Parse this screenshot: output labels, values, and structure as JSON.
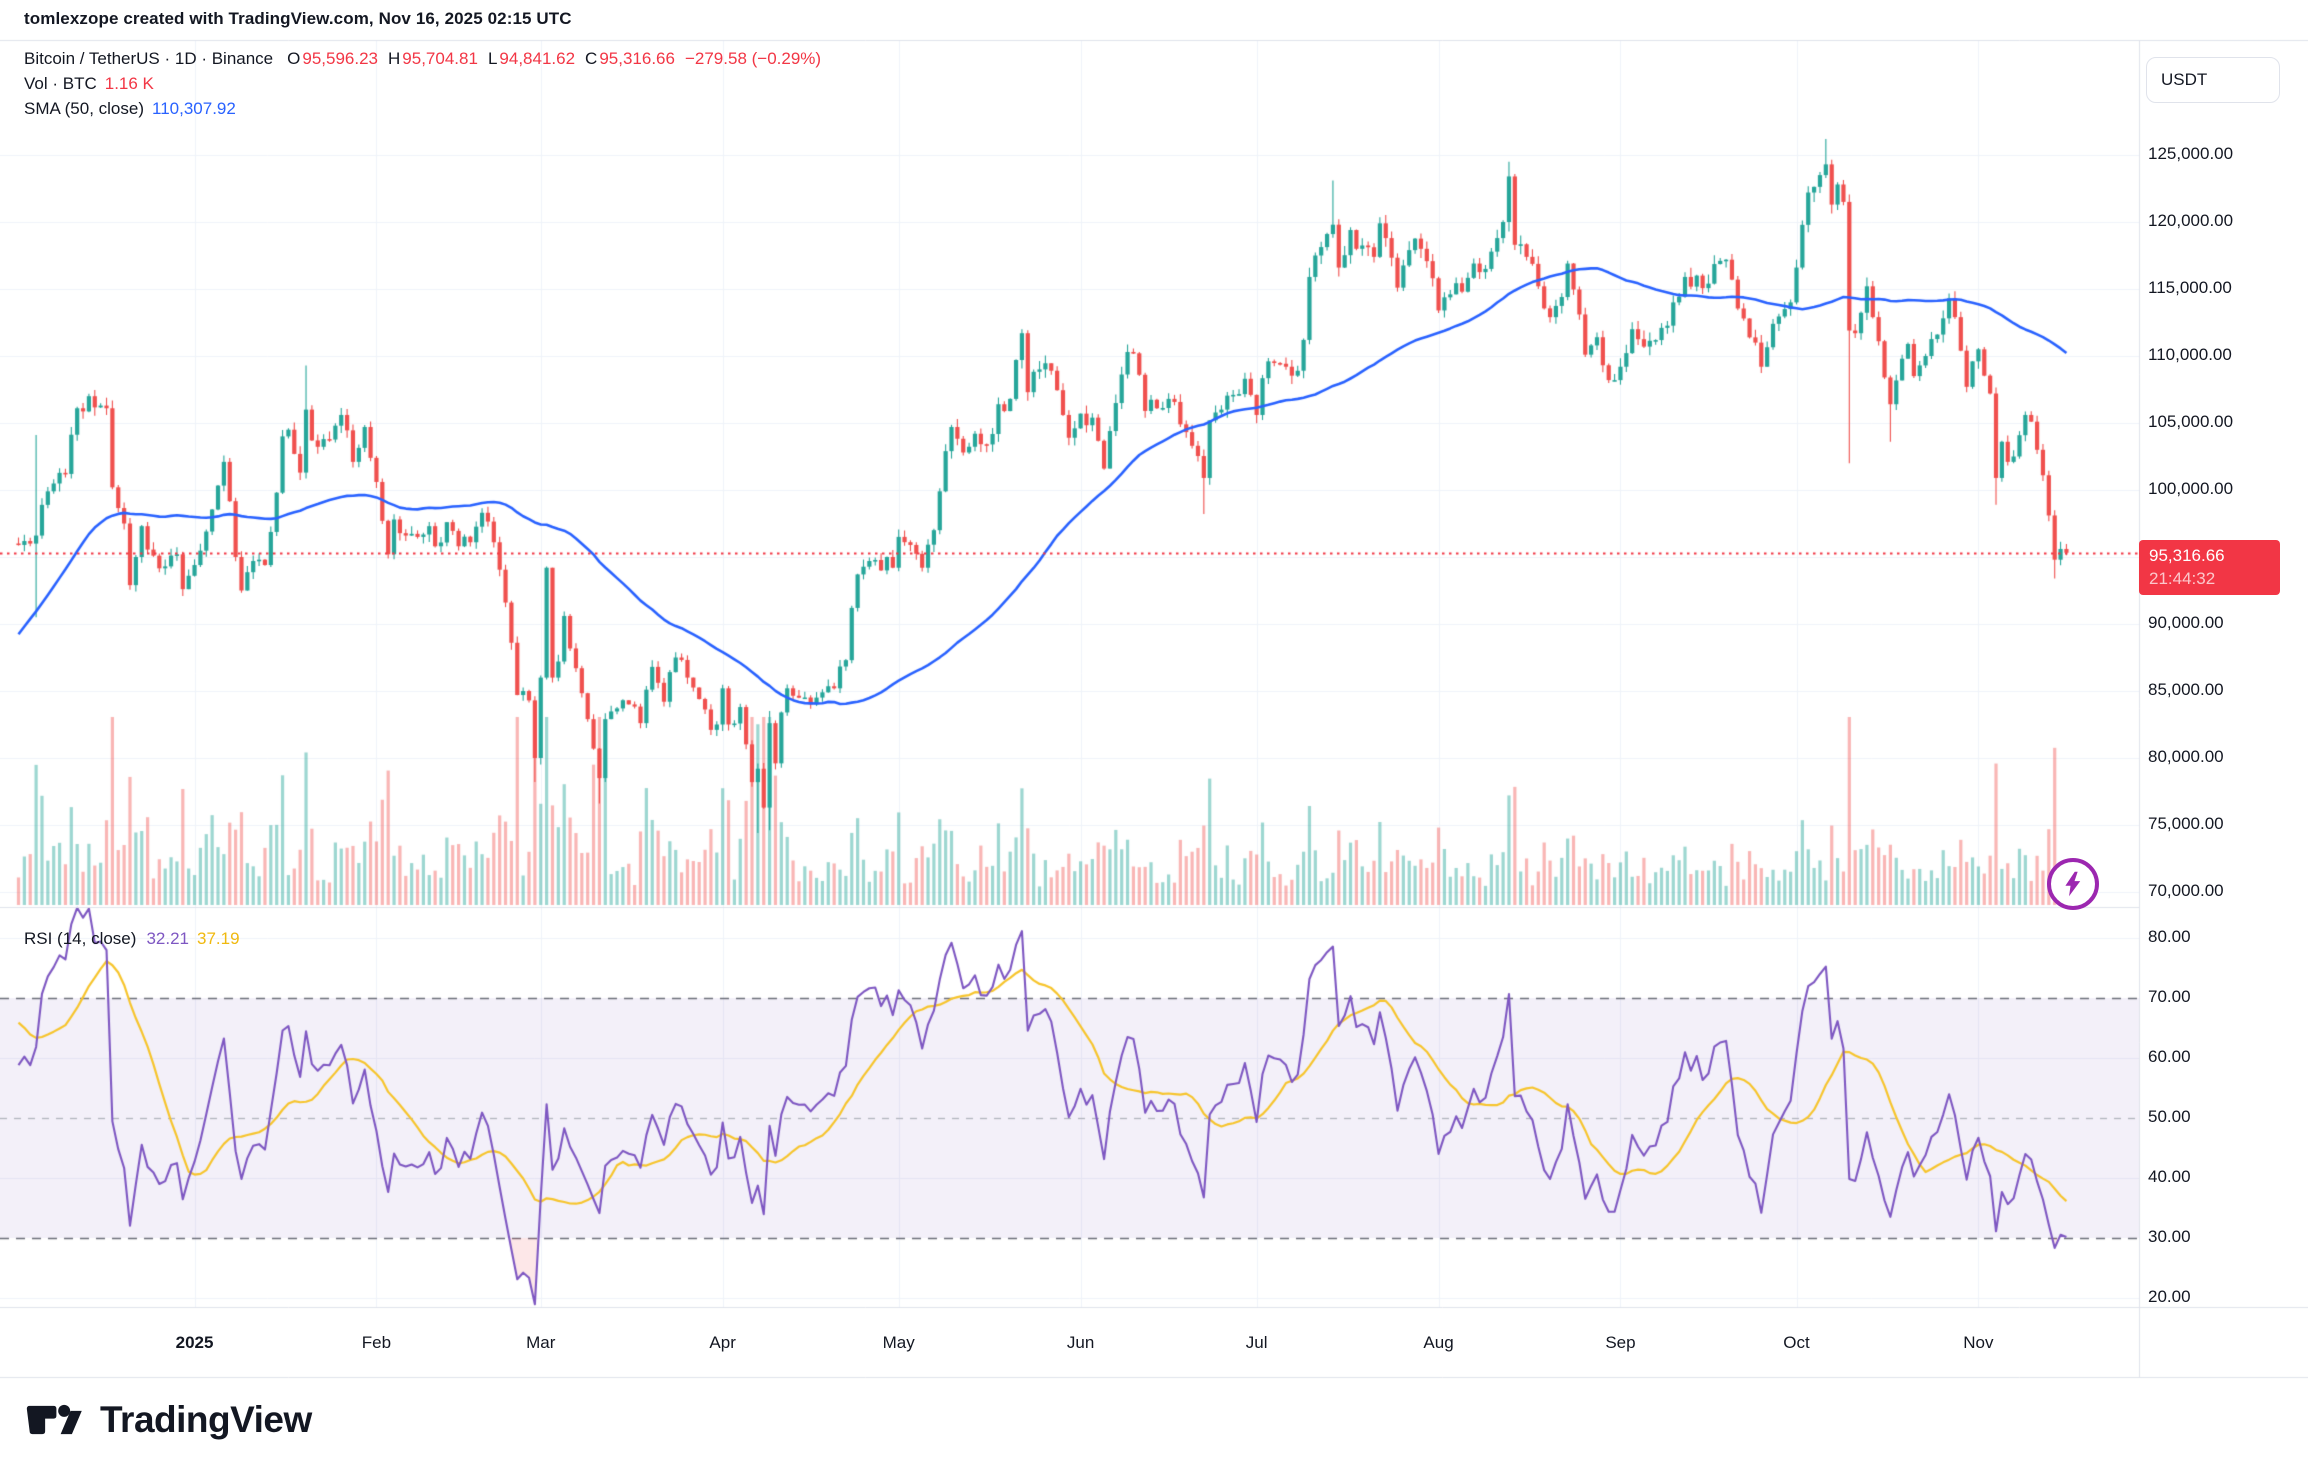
{
  "header": {
    "title": "tomlexzope created with TradingView.com, Nov 16, 2025 02:15 UTC"
  },
  "legend": {
    "title": "Bitcoin / TetherUS · 1D · Binance",
    "ohlc": [
      {
        "label": "O",
        "value": "95,596.23"
      },
      {
        "label": "H",
        "value": "95,704.81"
      },
      {
        "label": "L",
        "value": "94,841.62"
      },
      {
        "label": "C",
        "value": "95,316.66"
      }
    ],
    "change": "−279.58 (−0.29%)",
    "volume_label": "Vol · BTC",
    "volume_value": "1.16 K",
    "sma_label": "SMA (50, close)",
    "sma_value": "110,307.92"
  },
  "rsi_legend": {
    "label": "RSI (14, close)",
    "rsi_value": "32.21",
    "ma_value": "37.19"
  },
  "price_axis": {
    "currency": "USDT",
    "labels": [
      {
        "text": "125,000.00",
        "price": 125000
      },
      {
        "text": "120,000.00",
        "price": 120000
      },
      {
        "text": "115,000.00",
        "price": 115000
      },
      {
        "text": "110,000.00",
        "price": 110000
      },
      {
        "text": "105,000.00",
        "price": 105000
      },
      {
        "text": "100,000.00",
        "price": 100000
      },
      {
        "text": "90,000.00",
        "price": 90000
      },
      {
        "text": "85,000.00",
        "price": 85000
      },
      {
        "text": "80,000.00",
        "price": 80000
      },
      {
        "text": "75,000.00",
        "price": 75000
      },
      {
        "text": "70,000.00",
        "price": 70000
      }
    ],
    "grid_prices": [
      125000,
      120000,
      115000,
      110000,
      105000,
      100000,
      95000,
      90000,
      85000,
      80000,
      75000,
      70000
    ],
    "badge": {
      "price": "95,316.66",
      "countdown": "21:44:32"
    }
  },
  "rsi_axis": {
    "labels": [
      {
        "text": "80.00",
        "value": 80
      },
      {
        "text": "70.00",
        "value": 70
      },
      {
        "text": "60.00",
        "value": 60
      },
      {
        "text": "50.00",
        "value": 50
      },
      {
        "text": "40.00",
        "value": 40
      },
      {
        "text": "30.00",
        "value": 30
      },
      {
        "text": "20.00",
        "value": 20
      }
    ],
    "solid_grid": [
      80,
      60,
      40,
      20
    ],
    "dashed_dark": [
      70,
      30
    ],
    "dashed_light": [
      50
    ]
  },
  "time_axis": {
    "labels": [
      {
        "label": "2025",
        "day": 30,
        "bold": true
      },
      {
        "label": "Feb",
        "day": 61
      },
      {
        "label": "Mar",
        "day": 89
      },
      {
        "label": "Apr",
        "day": 120
      },
      {
        "label": "May",
        "day": 150
      },
      {
        "label": "Jun",
        "day": 181
      },
      {
        "label": "Jul",
        "day": 211
      },
      {
        "label": "Aug",
        "day": 242
      },
      {
        "label": "Sep",
        "day": 273
      },
      {
        "label": "Oct",
        "day": 303
      },
      {
        "label": "Nov",
        "day": 334
      }
    ]
  },
  "footer": {
    "brand": "TradingView"
  },
  "colors": {
    "up": "#26a69a",
    "down": "#f0504e",
    "vol_up": "rgba(38,166,154,0.45)",
    "vol_down": "rgba(240,80,78,0.42)",
    "sma": "#2962ff",
    "rsi": "#7e57c2",
    "rsi_ma": "#f7c52d",
    "last_price": "#f23645",
    "badge": "#f23645",
    "grid": "#f0f3fa",
    "separator": "#e0e3eb",
    "band_fill": "rgba(126,87,194,0.09)",
    "oversold_fill": "rgba(242,54,69,0.12)",
    "dash_dark": "#6b6e79",
    "dash_light": "#b2b5be",
    "flash": "#9c27b0",
    "text": "#131722"
  },
  "chart_data": {
    "type": "candlestick",
    "title": "Bitcoin / TetherUS · 1D · Binance",
    "ylabel": "USDT",
    "x_range": "Dec 2024 – Nov 16, 2025 (daily)",
    "price_axis_ticks": [
      125000,
      120000,
      115000,
      110000,
      105000,
      100000,
      90000,
      85000,
      80000,
      75000,
      70000
    ],
    "rsi_axis_ticks": [
      80,
      70,
      60,
      50,
      40,
      30,
      20
    ],
    "last_price": 95316.66,
    "last_change": -279.58,
    "last_change_pct": -0.29,
    "last_ohlc": {
      "open": 95596.23,
      "high": 95704.81,
      "low": 94841.62,
      "close": 95316.66
    },
    "volume_btc": "1.16 K",
    "indicators": {
      "sma": {
        "period": 50,
        "source": "close",
        "value": 110307.92
      },
      "rsi": {
        "period": 14,
        "source": "close",
        "value": 32.21,
        "ma_value": 37.19,
        "bands": [
          70,
          50,
          30
        ]
      }
    },
    "price_keyframes": [
      [
        -50,
        67500
      ],
      [
        -46,
        68600
      ],
      [
        -42,
        69300
      ],
      [
        -40,
        72000
      ],
      [
        -38,
        75600
      ],
      [
        -36,
        88000
      ],
      [
        -34,
        90500
      ],
      [
        -31,
        95900
      ],
      [
        -28,
        98300
      ],
      [
        -26,
        97700
      ],
      [
        -24,
        92000
      ],
      [
        -21,
        95900
      ],
      [
        -18,
        97500
      ],
      [
        -15,
        96400
      ],
      [
        -12,
        97900
      ],
      [
        -9,
        96700
      ],
      [
        -6,
        97200
      ],
      [
        -3,
        95800
      ],
      [
        0,
        95900
      ],
      [
        2,
        96000
      ],
      [
        3,
        96600
      ],
      [
        5,
        99900
      ],
      [
        8,
        101200
      ],
      [
        10,
        106100
      ],
      [
        12,
        107000
      ],
      [
        14,
        106300
      ],
      [
        15,
        106100
      ],
      [
        16,
        100200
      ],
      [
        18,
        97500
      ],
      [
        19,
        92900
      ],
      [
        21,
        97300
      ],
      [
        23,
        95100
      ],
      [
        25,
        94300
      ],
      [
        27,
        95200
      ],
      [
        28,
        92600
      ],
      [
        29,
        93600
      ],
      [
        30,
        94400
      ],
      [
        32,
        96900
      ],
      [
        35,
        102100
      ],
      [
        37,
        95000
      ],
      [
        38,
        92500
      ],
      [
        40,
        94700
      ],
      [
        42,
        94400
      ],
      [
        44,
        99800
      ],
      [
        45,
        104000
      ],
      [
        46,
        104500
      ],
      [
        48,
        101300
      ],
      [
        49,
        106000
      ],
      [
        50,
        103700
      ],
      [
        52,
        103800
      ],
      [
        54,
        104800
      ],
      [
        55,
        105600
      ],
      [
        57,
        102100
      ],
      [
        59,
        104700
      ],
      [
        60,
        102400
      ],
      [
        61,
        100600
      ],
      [
        62,
        97700
      ],
      [
        63,
        95200
      ],
      [
        64,
        97800
      ],
      [
        66,
        96600
      ],
      [
        68,
        96500
      ],
      [
        70,
        97300
      ],
      [
        71,
        95800
      ],
      [
        73,
        97600
      ],
      [
        75,
        95800
      ],
      [
        77,
        96100
      ],
      [
        79,
        98300
      ],
      [
        81,
        96100
      ],
      [
        83,
        91600
      ],
      [
        84,
        88600
      ],
      [
        85,
        84700
      ],
      [
        87,
        84300
      ],
      [
        88,
        80000
      ],
      [
        89,
        86000
      ],
      [
        90,
        94200
      ],
      [
        91,
        86000
      ],
      [
        92,
        87200
      ],
      [
        93,
        90600
      ],
      [
        95,
        86700
      ],
      [
        97,
        82900
      ],
      [
        98,
        80700
      ],
      [
        99,
        78500
      ],
      [
        100,
        82900
      ],
      [
        102,
        83700
      ],
      [
        104,
        84000
      ],
      [
        106,
        82600
      ],
      [
        108,
        86800
      ],
      [
        110,
        84200
      ],
      [
        112,
        87500
      ],
      [
        114,
        86000
      ],
      [
        116,
        84400
      ],
      [
        118,
        82100
      ],
      [
        119,
        82500
      ],
      [
        120,
        85200
      ],
      [
        121,
        82500
      ],
      [
        123,
        83800
      ],
      [
        125,
        78200
      ],
      [
        126,
        79200
      ],
      [
        127,
        76300
      ],
      [
        128,
        82600
      ],
      [
        129,
        79600
      ],
      [
        130,
        83400
      ],
      [
        131,
        85200
      ],
      [
        133,
        84500
      ],
      [
        135,
        84000
      ],
      [
        137,
        84900
      ],
      [
        139,
        85200
      ],
      [
        141,
        87300
      ],
      [
        142,
        91200
      ],
      [
        143,
        93700
      ],
      [
        145,
        94700
      ],
      [
        147,
        94000
      ],
      [
        148,
        95000
      ],
      [
        149,
        94200
      ],
      [
        150,
        96500
      ],
      [
        152,
        95900
      ],
      [
        154,
        94200
      ],
      [
        156,
        97000
      ],
      [
        157,
        99900
      ],
      [
        158,
        102900
      ],
      [
        159,
        104700
      ],
      [
        161,
        102800
      ],
      [
        163,
        104200
      ],
      [
        165,
        103400
      ],
      [
        167,
        106400
      ],
      [
        169,
        106800
      ],
      [
        170,
        109700
      ],
      [
        171,
        111700
      ],
      [
        172,
        107300
      ],
      [
        174,
        109000
      ],
      [
        176,
        108900
      ],
      [
        178,
        105600
      ],
      [
        179,
        103900
      ],
      [
        180,
        104600
      ],
      [
        181,
        105700
      ],
      [
        183,
        105400
      ],
      [
        185,
        101600
      ],
      [
        186,
        104400
      ],
      [
        189,
        110300
      ],
      [
        190,
        110200
      ],
      [
        191,
        108600
      ],
      [
        192,
        105900
      ],
      [
        194,
        106100
      ],
      [
        196,
        106800
      ],
      [
        198,
        104900
      ],
      [
        200,
        103300
      ],
      [
        202,
        100900
      ],
      [
        203,
        105200
      ],
      [
        205,
        106000
      ],
      [
        207,
        107100
      ],
      [
        209,
        108300
      ],
      [
        210,
        107100
      ],
      [
        211,
        105600
      ],
      [
        213,
        109600
      ],
      [
        216,
        109200
      ],
      [
        218,
        108900
      ],
      [
        219,
        111200
      ],
      [
        220,
        115900
      ],
      [
        221,
        117500
      ],
      [
        223,
        119100
      ],
      [
        224,
        119800
      ],
      [
        225,
        116600
      ],
      [
        227,
        119400
      ],
      [
        228,
        118000
      ],
      [
        231,
        117400
      ],
      [
        232,
        119900
      ],
      [
        233,
        118800
      ],
      [
        235,
        115100
      ],
      [
        237,
        117900
      ],
      [
        239,
        118000
      ],
      [
        241,
        115800
      ],
      [
        242,
        113400
      ],
      [
        244,
        114600
      ],
      [
        246,
        114800
      ],
      [
        248,
        116900
      ],
      [
        250,
        116500
      ],
      [
        252,
        118800
      ],
      [
        253,
        120000
      ],
      [
        254,
        123400
      ],
      [
        255,
        118300
      ],
      [
        257,
        117400
      ],
      [
        259,
        115200
      ],
      [
        261,
        112900
      ],
      [
        263,
        114400
      ],
      [
        264,
        116900
      ],
      [
        266,
        113100
      ],
      [
        267,
        110100
      ],
      [
        269,
        111400
      ],
      [
        271,
        108200
      ],
      [
        272,
        108200
      ],
      [
        273,
        109200
      ],
      [
        275,
        112000
      ],
      [
        277,
        110700
      ],
      [
        280,
        112100
      ],
      [
        282,
        114000
      ],
      [
        284,
        115900
      ],
      [
        286,
        116000
      ],
      [
        288,
        115400
      ],
      [
        290,
        117100
      ],
      [
        292,
        115700
      ],
      [
        294,
        112800
      ],
      [
        296,
        111000
      ],
      [
        297,
        109200
      ],
      [
        299,
        112400
      ],
      [
        301,
        113500
      ],
      [
        302,
        114000
      ],
      [
        303,
        116600
      ],
      [
        305,
        122200
      ],
      [
        307,
        123500
      ],
      [
        308,
        124300
      ],
      [
        309,
        121300
      ],
      [
        310,
        122800
      ],
      [
        311,
        121500
      ],
      [
        312,
        111900
      ],
      [
        313,
        111700
      ],
      [
        315,
        115200
      ],
      [
        316,
        112900
      ],
      [
        318,
        108400
      ],
      [
        319,
        106400
      ],
      [
        322,
        110900
      ],
      [
        323,
        108500
      ],
      [
        325,
        110000
      ],
      [
        327,
        111600
      ],
      [
        329,
        114300
      ],
      [
        330,
        112900
      ],
      [
        332,
        107700
      ],
      [
        333,
        109600
      ],
      [
        334,
        110500
      ],
      [
        336,
        107200
      ],
      [
        337,
        100900
      ],
      [
        338,
        103600
      ],
      [
        339,
        102100
      ],
      [
        340,
        102500
      ],
      [
        342,
        105600
      ],
      [
        343,
        105100
      ],
      [
        344,
        103000
      ],
      [
        345,
        101100
      ],
      [
        346,
        98100
      ],
      [
        347,
        94800
      ],
      [
        348,
        95600
      ],
      [
        349,
        95316.66
      ]
    ],
    "wick_overrides": {
      "3": [
        104100,
        90500
      ],
      "49": [
        109300,
        null
      ],
      "88": [
        null,
        78200
      ],
      "99": [
        null,
        76600
      ],
      "126": [
        null,
        74400
      ],
      "128": [
        83500,
        74600
      ],
      "171": [
        112000,
        null
      ],
      "202": [
        null,
        98200
      ],
      "224": [
        123100,
        null
      ],
      "254": [
        124500,
        null
      ],
      "308": [
        126200,
        null
      ],
      "312": [
        null,
        102000
      ],
      "319": [
        null,
        103600
      ],
      "337": [
        null,
        98900
      ],
      "347": [
        null,
        93400
      ]
    },
    "volume_spikes": {
      "3": 3.2,
      "15": 1.8,
      "49": 1.9,
      "63": 1.7,
      "83": 1.6,
      "85": 2.4,
      "88": 2.6,
      "90": 2.8,
      "98": 2.2,
      "99": 1.9,
      "125": 2.0,
      "126": 2.8,
      "127": 2.6,
      "128": 3.0,
      "158": 1.6,
      "171": 1.7,
      "202": 1.7,
      "224": 1.6,
      "254": 1.5,
      "312": 3.4,
      "313": 1.8,
      "337": 2.0,
      "346": 1.6,
      "347": 2.2
    }
  }
}
